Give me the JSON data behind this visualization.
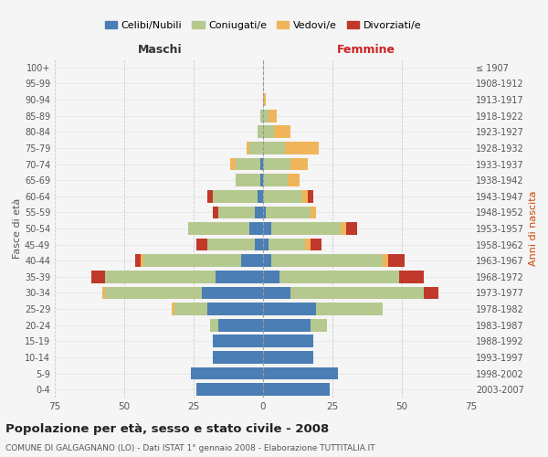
{
  "age_groups": [
    "0-4",
    "5-9",
    "10-14",
    "15-19",
    "20-24",
    "25-29",
    "30-34",
    "35-39",
    "40-44",
    "45-49",
    "50-54",
    "55-59",
    "60-64",
    "65-69",
    "70-74",
    "75-79",
    "80-84",
    "85-89",
    "90-94",
    "95-99",
    "100+"
  ],
  "birth_years": [
    "2003-2007",
    "1998-2002",
    "1993-1997",
    "1988-1992",
    "1983-1987",
    "1978-1982",
    "1973-1977",
    "1968-1972",
    "1963-1967",
    "1958-1962",
    "1953-1957",
    "1948-1952",
    "1943-1947",
    "1938-1942",
    "1933-1937",
    "1928-1932",
    "1923-1927",
    "1918-1922",
    "1913-1917",
    "1908-1912",
    "≤ 1907"
  ],
  "male": {
    "celibi": [
      24,
      26,
      18,
      18,
      16,
      20,
      22,
      17,
      8,
      3,
      5,
      3,
      2,
      1,
      1,
      0,
      0,
      0,
      0,
      0,
      0
    ],
    "coniugati": [
      0,
      0,
      0,
      0,
      3,
      12,
      35,
      40,
      35,
      17,
      22,
      13,
      16,
      9,
      9,
      5,
      2,
      1,
      0,
      0,
      0
    ],
    "vedovi": [
      0,
      0,
      0,
      0,
      0,
      1,
      1,
      0,
      1,
      0,
      0,
      0,
      0,
      0,
      2,
      1,
      0,
      0,
      0,
      0,
      0
    ],
    "divorziati": [
      0,
      0,
      0,
      0,
      0,
      0,
      0,
      5,
      2,
      4,
      0,
      2,
      2,
      0,
      0,
      0,
      0,
      0,
      0,
      0,
      0
    ]
  },
  "female": {
    "nubili": [
      24,
      27,
      18,
      18,
      17,
      19,
      10,
      6,
      3,
      2,
      3,
      1,
      0,
      0,
      0,
      0,
      0,
      0,
      0,
      0,
      0
    ],
    "coniugate": [
      0,
      0,
      0,
      0,
      6,
      24,
      48,
      43,
      40,
      13,
      25,
      16,
      14,
      9,
      10,
      8,
      4,
      2,
      0,
      0,
      0
    ],
    "vedove": [
      0,
      0,
      0,
      0,
      0,
      0,
      0,
      0,
      2,
      2,
      2,
      2,
      2,
      4,
      6,
      12,
      6,
      3,
      1,
      0,
      0
    ],
    "divorziate": [
      0,
      0,
      0,
      0,
      0,
      0,
      5,
      9,
      6,
      4,
      4,
      0,
      2,
      0,
      0,
      0,
      0,
      0,
      0,
      0,
      0
    ]
  },
  "colors": {
    "celibi_nubili": "#4a7eb5",
    "coniugati": "#b5c98e",
    "vedovi": "#f0b55a",
    "divorziati": "#c0392b"
  },
  "title": "Popolazione per età, sesso e stato civile - 2008",
  "subtitle": "COMUNE DI GALGAGNANO (LO) - Dati ISTAT 1° gennaio 2008 - Elaborazione TUTTITALIA.IT",
  "xlabel_left": "Maschi",
  "xlabel_right": "Femmine",
  "ylabel_left": "Fasce di età",
  "ylabel_right": "Anni di nascita",
  "xlim": 75,
  "bg_color": "#f5f5f5",
  "grid_color": "#cccccc",
  "legend_labels": [
    "Celibi/Nubili",
    "Coniugati/e",
    "Vedovi/e",
    "Divorziati/e"
  ]
}
